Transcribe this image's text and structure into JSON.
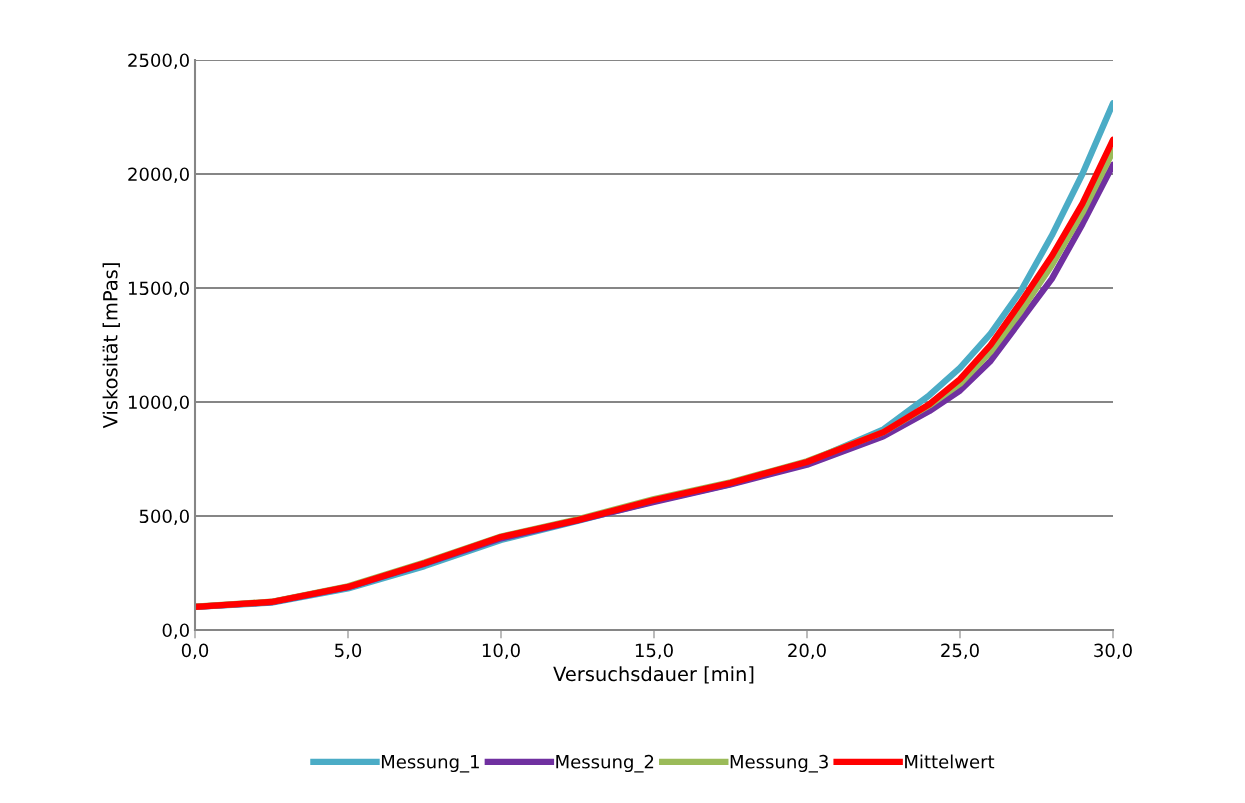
{
  "chart_data": {
    "type": "line",
    "xlabel": "Versuchsdauer [min]",
    "ylabel": "Viskosität [mPas]",
    "xlim": [
      0,
      30
    ],
    "ylim": [
      0,
      2500
    ],
    "xticks": [
      {
        "value": 0,
        "label": "0,0"
      },
      {
        "value": 5,
        "label": "5,0"
      },
      {
        "value": 10,
        "label": "10,0"
      },
      {
        "value": 15,
        "label": "15,0"
      },
      {
        "value": 20,
        "label": "20,0"
      },
      {
        "value": 25,
        "label": "25,0"
      },
      {
        "value": 30,
        "label": "30,0"
      }
    ],
    "yticks": [
      {
        "value": 0,
        "label": "0,0"
      },
      {
        "value": 500,
        "label": "500,0"
      },
      {
        "value": 1000,
        "label": "1000,0"
      },
      {
        "value": 1500,
        "label": "1500,0"
      },
      {
        "value": 2000,
        "label": "2000,0"
      },
      {
        "value": 2500,
        "label": "2500,0"
      }
    ],
    "grid": "y",
    "legend": "bottom",
    "marker": "none",
    "line_style": "solid",
    "x": [
      0,
      2.5,
      5,
      7.5,
      10,
      12.5,
      15,
      17.5,
      20,
      22.5,
      24,
      25,
      26,
      27,
      28,
      29,
      30
    ],
    "series": [
      {
        "name": "Messung_1",
        "color": "#4bacc6",
        "values": [
          101,
          120,
          182,
          280,
          395,
          478,
          565,
          640,
          735,
          880,
          1030,
          1150,
          1300,
          1490,
          1730,
          2000,
          2310
        ]
      },
      {
        "name": "Messung_2",
        "color": "#7030a0",
        "values": [
          101,
          122,
          188,
          290,
          402,
          480,
          562,
          638,
          725,
          850,
          960,
          1050,
          1180,
          1360,
          1540,
          1780,
          2040
        ]
      },
      {
        "name": "Messung_3",
        "color": "#9bbb59",
        "values": [
          102,
          124,
          192,
          296,
          410,
          486,
          574,
          648,
          740,
          868,
          985,
          1080,
          1220,
          1400,
          1600,
          1830,
          2100
        ]
      },
      {
        "name": "Mittelwert",
        "color": "#ff0000",
        "values": [
          101,
          123,
          189,
          293,
          408,
          482,
          570,
          645,
          737,
          868,
          990,
          1100,
          1250,
          1440,
          1640,
          1870,
          2150
        ]
      }
    ]
  }
}
